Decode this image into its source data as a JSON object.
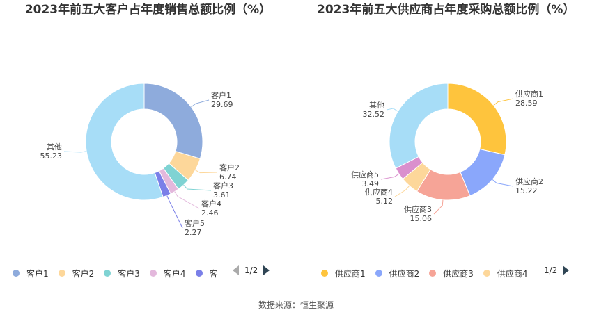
{
  "charts": [
    {
      "title": "2023年前五大客户占年度销售总额比例（%）",
      "legend_page": "1/2",
      "legend_visible": [
        "客户1",
        "客户2",
        "客户3",
        "客户4",
        "客"
      ]
    },
    {
      "title": "2023年前五大供应商占年度采购总额比例（%）",
      "legend_page": "1/2",
      "legend_visible": [
        "供应商1",
        "供应商2",
        "供应商3",
        "供应商4"
      ]
    }
  ],
  "source": "数据来源：恒生聚源",
  "chart_data": [
    {
      "type": "pie",
      "title": "2023年前五大客户占年度销售总额比例（%）",
      "categories": [
        "客户1",
        "客户2",
        "客户3",
        "客户4",
        "客户5",
        "其他"
      ],
      "values": [
        29.69,
        6.74,
        3.61,
        2.46,
        2.27,
        55.23
      ],
      "value_labels": [
        "29.69",
        "6.74",
        "3.61",
        "2.46",
        "2.27",
        "55.23"
      ],
      "colors": [
        "#8eabdc",
        "#fdd79a",
        "#7fd3d3",
        "#e3b8dc",
        "#7a7fe8",
        "#a7ddf7"
      ],
      "legend": "bottom"
    },
    {
      "type": "pie",
      "title": "2023年前五大供应商占年度采购总额比例（%）",
      "categories": [
        "供应商1",
        "供应商2",
        "供应商3",
        "供应商4",
        "供应商5",
        "其他"
      ],
      "values": [
        28.59,
        15.22,
        15.06,
        5.12,
        3.49,
        32.52
      ],
      "value_labels": [
        "28.59",
        "15.22",
        "15.06",
        "5.12",
        "3.49",
        "32.52"
      ],
      "colors": [
        "#fec43d",
        "#8aa7fb",
        "#f6a497",
        "#fdd79a",
        "#da8fcd",
        "#a7ddf7"
      ],
      "legend": "bottom"
    }
  ]
}
